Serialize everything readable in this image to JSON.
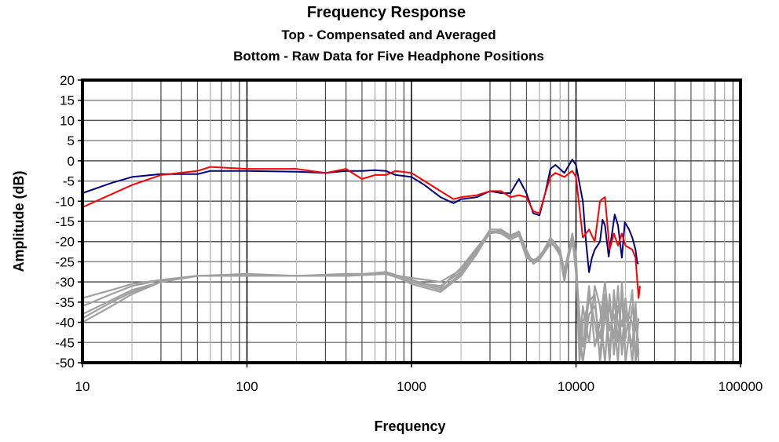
{
  "chart_data": {
    "type": "line",
    "title": "Frequency Response",
    "subtitle_lines": [
      "Top -  Compensated and Averaged",
      "Bottom - Raw Data for Five Headphone Positions"
    ],
    "xlabel": "Frequency",
    "ylabel": "Amplitude (dB)",
    "xscale": "log",
    "xlim": [
      10,
      100000
    ],
    "ylim": [
      -50,
      20
    ],
    "grid": true,
    "x_ticks": [
      "10",
      "100",
      "1000",
      "10000",
      "100000"
    ],
    "y_ticks": [
      "20",
      "15",
      "10",
      "5",
      "0",
      "-5",
      "-10",
      "-15",
      "-20",
      "-25",
      "-30",
      "-35",
      "-40",
      "-45",
      "-50"
    ],
    "compensated": [
      {
        "name": "compensated-blue",
        "color": "#000080",
        "x": [
          10,
          15,
          20,
          30,
          50,
          60,
          100,
          200,
          300,
          400,
          500,
          600,
          700,
          800,
          1000,
          1200,
          1500,
          1800,
          2000,
          2500,
          3000,
          3500,
          4000,
          4200,
          4500,
          5000,
          5500,
          6000,
          6500,
          7000,
          7500,
          8500,
          9500,
          10000,
          11000,
          11500,
          12000,
          12500,
          13000,
          14000,
          14500,
          15000,
          15800,
          17200,
          18000,
          19000,
          19800,
          21000,
          22000,
          23000,
          23600,
          24000
        ],
        "y": [
          -8,
          -5.5,
          -4,
          -3.3,
          -3.3,
          -2.5,
          -2.5,
          -2.7,
          -3,
          -2.5,
          -2.5,
          -2.3,
          -2.5,
          -3.5,
          -4,
          -6,
          -9,
          -10.5,
          -9.5,
          -9,
          -7.5,
          -8,
          -8,
          -6.5,
          -4.5,
          -8,
          -13,
          -13.5,
          -8,
          -2,
          -1,
          -3,
          0.3,
          -1,
          -10,
          -20,
          -27.6,
          -24,
          -22,
          -20,
          -14.6,
          -16,
          -23.7,
          -13.3,
          -16,
          -24,
          -15.2,
          -17,
          -19,
          -22,
          -25.3,
          -25.5
        ]
      },
      {
        "name": "compensated-red",
        "color": "#ff0000",
        "x": [
          10,
          20,
          30,
          50,
          60,
          100,
          200,
          300,
          400,
          500,
          600,
          700,
          800,
          1000,
          1200,
          1500,
          1800,
          2000,
          2500,
          3000,
          3500,
          4000,
          4500,
          5000,
          5500,
          6000,
          6500,
          7000,
          7500,
          8500,
          9500,
          10000,
          11000,
          12000,
          13000,
          14000,
          14500,
          15000,
          16000,
          17000,
          18000,
          19000,
          20000,
          22000,
          23000,
          24000,
          24500
        ],
        "y": [
          -11.5,
          -6,
          -3.5,
          -2.5,
          -1.5,
          -2,
          -2,
          -3,
          -2,
          -4.5,
          -3.5,
          -3.5,
          -2.5,
          -3,
          -5,
          -7.5,
          -9.5,
          -9,
          -8.5,
          -7.5,
          -7.5,
          -9,
          -8.5,
          -9,
          -12.5,
          -13,
          -8,
          -4,
          -3,
          -4,
          -2.5,
          -4,
          -19,
          -17,
          -20,
          -10,
          -9.4,
          -9,
          -22,
          -18,
          -21,
          -18,
          -21,
          -22,
          -24,
          -34,
          -31
        ]
      }
    ],
    "raw_x": [
      10,
      15,
      20,
      30,
      50,
      100,
      200,
      400,
      700,
      1000,
      1500,
      2000,
      2500,
      3000,
      3500,
      4000,
      4500,
      5000,
      5500,
      6000,
      7000,
      8000,
      8500,
      9500,
      10000,
      10500,
      11000,
      12000,
      13000,
      14000,
      15000,
      16000,
      17000,
      18000,
      19000,
      20000,
      22000,
      23000,
      24000
    ],
    "raw_color": "#a0a0a0",
    "raw": [
      {
        "name": "position-1",
        "y": [
          -34,
          -32,
          -30.5,
          -29.5,
          -28.5,
          -28.5,
          -28.5,
          -28.5,
          -28,
          -29,
          -30,
          -27,
          -22,
          -18,
          -17,
          -19,
          -18,
          -23,
          -25,
          -24,
          -20,
          -23,
          -27,
          -19,
          -24,
          -44,
          -50,
          -33,
          -40,
          -48,
          -35,
          -50,
          -32,
          -45,
          -33,
          -50,
          -36,
          -42,
          -40
        ]
      },
      {
        "name": "position-2",
        "y": [
          -36,
          -33,
          -31,
          -29.5,
          -28.5,
          -28.5,
          -28.5,
          -28.5,
          -28,
          -30,
          -31,
          -27.5,
          -22.5,
          -18,
          -17.5,
          -18.5,
          -17.5,
          -22.5,
          -25.5,
          -24.5,
          -20.5,
          -22,
          -28,
          -20,
          -26,
          -38,
          -46,
          -31,
          -46,
          -40,
          -30,
          -42,
          -38,
          -50,
          -30,
          -44,
          -32,
          -50,
          -44
        ]
      },
      {
        "name": "position-3",
        "y": [
          -38,
          -34.5,
          -32,
          -30,
          -28.5,
          -28,
          -28.5,
          -28.5,
          -27.5,
          -29.5,
          -31.5,
          -26.5,
          -21.5,
          -17.5,
          -18,
          -19.5,
          -18.5,
          -24,
          -25,
          -23.5,
          -20,
          -22.5,
          -29,
          -19.5,
          -27,
          -50,
          -40,
          -35,
          -33,
          -50,
          -38,
          -36,
          -44,
          -31,
          -48,
          -38,
          -46,
          -35,
          -48
        ]
      },
      {
        "name": "position-4",
        "y": [
          -39,
          -35,
          -32.5,
          -30,
          -28.5,
          -28.5,
          -28.5,
          -28,
          -28,
          -30,
          -32,
          -28,
          -22,
          -17,
          -17,
          -18.5,
          -18,
          -23.5,
          -24.5,
          -24,
          -19.5,
          -23.5,
          -30,
          -18.5,
          -28,
          -47,
          -36,
          -45,
          -31,
          -36,
          -50,
          -33,
          -48,
          -36,
          -41,
          -34,
          -50,
          -38,
          -50
        ]
      },
      {
        "name": "position-5",
        "y": [
          -40,
          -36,
          -33,
          -30,
          -28.5,
          -28.5,
          -28.5,
          -28.5,
          -27.5,
          -30.5,
          -32.5,
          -28.5,
          -23,
          -17.5,
          -17.5,
          -19,
          -17.5,
          -22,
          -25.5,
          -24,
          -19,
          -22,
          -27.5,
          -18,
          -23,
          -42,
          -50,
          -38,
          -36,
          -44,
          -33,
          -47,
          -35,
          -40,
          -45,
          -37,
          -40,
          -48,
          -39
        ]
      }
    ]
  }
}
